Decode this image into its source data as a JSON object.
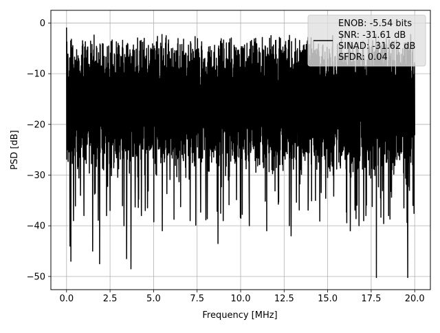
{
  "chart_data": {
    "type": "line",
    "title": "",
    "xlabel": "Frequency [MHz]",
    "ylabel": "PSD [dB]",
    "xlim": [
      -0.9,
      20.9
    ],
    "ylim": [
      -52.6,
      2.5
    ],
    "xticks": [
      0.0,
      2.5,
      5.0,
      7.5,
      10.0,
      12.5,
      15.0,
      17.5,
      20.0
    ],
    "xtick_labels": [
      "0.0",
      "2.5",
      "5.0",
      "7.5",
      "10.0",
      "12.5",
      "15.0",
      "17.5",
      "20.0"
    ],
    "yticks": [
      0,
      -10,
      -20,
      -30,
      -40,
      -50
    ],
    "ytick_labels": [
      "0",
      "−10",
      "−20",
      "−30",
      "−40",
      "−50"
    ],
    "grid": true,
    "legend_position": "top-right",
    "line_color": "#000000",
    "series": [
      {
        "label_lines": [
          "ENOB: -5.54 bits",
          "SNR: -31.61 dB",
          "SINAD: -31.62 dB",
          "SFDR: 0.04"
        ],
        "x_range": [
          0.0,
          20.0
        ],
        "typical_upper_dB": -5,
        "typical_lower_dB": -22,
        "notable_points": [
          {
            "x": 0.0,
            "y": -0.9
          },
          {
            "x": 0.2,
            "y": -44
          },
          {
            "x": 0.25,
            "y": -47
          },
          {
            "x": 0.4,
            "y": -39
          },
          {
            "x": 0.8,
            "y": -34
          },
          {
            "x": 1.0,
            "y": -38
          },
          {
            "x": 1.5,
            "y": -45
          },
          {
            "x": 1.9,
            "y": -47.5
          },
          {
            "x": 2.3,
            "y": -38
          },
          {
            "x": 2.5,
            "y": -37
          },
          {
            "x": 3.3,
            "y": -40
          },
          {
            "x": 3.45,
            "y": -46.5
          },
          {
            "x": 3.7,
            "y": -48.5
          },
          {
            "x": 4.3,
            "y": -38
          },
          {
            "x": 5.5,
            "y": -41
          },
          {
            "x": 7.1,
            "y": -39
          },
          {
            "x": 8.7,
            "y": -43.5
          },
          {
            "x": 9.0,
            "y": -39
          },
          {
            "x": 10.5,
            "y": -40
          },
          {
            "x": 11.5,
            "y": -41
          },
          {
            "x": 12.8,
            "y": -40
          },
          {
            "x": 12.9,
            "y": -42
          },
          {
            "x": 14.3,
            "y": -35
          },
          {
            "x": 16.3,
            "y": -41
          },
          {
            "x": 16.8,
            "y": -40
          },
          {
            "x": 17.2,
            "y": -38
          },
          {
            "x": 17.8,
            "y": -50.2
          },
          {
            "x": 18.5,
            "y": -38
          },
          {
            "x": 19.6,
            "y": -50.2
          },
          {
            "x": 19.9,
            "y": -36
          }
        ]
      }
    ]
  }
}
